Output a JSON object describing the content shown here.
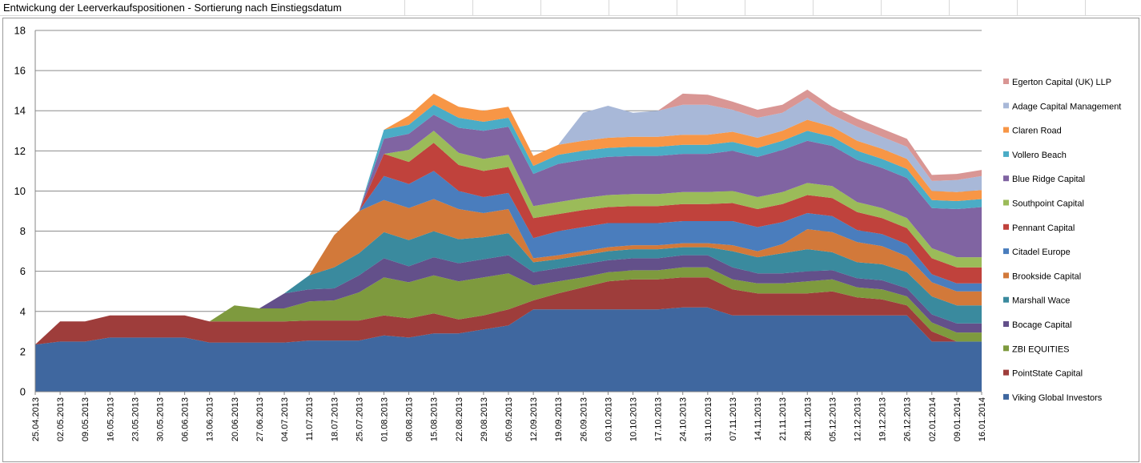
{
  "sheet": {
    "title": "Entwickung der Leerverkaufspositionen - Sortierung nach Einstiegsdatum"
  },
  "chart_data": {
    "type": "area",
    "stacked": true,
    "title": "Entwickung der Leerverkaufspositionen - Sortierung nach Einstiegsdatum",
    "xlabel": "",
    "ylabel": "",
    "ylim": [
      0,
      18
    ],
    "yticks": [
      0,
      2,
      4,
      6,
      8,
      10,
      12,
      14,
      16,
      18
    ],
    "grid": true,
    "legend_position": "right",
    "x_tick_labels": [
      "25.04.2013",
      "02.05.2013",
      "09.05.2013",
      "16.05.2013",
      "23.05.2013",
      "30.05.2013",
      "06.06.2013",
      "13.06.2013",
      "20.06.2013",
      "27.06.2013",
      "04.07.2013",
      "11.07.2013",
      "18.07.2013",
      "25.07.2013",
      "01.08.2013",
      "08.08.2013",
      "15.08.2013",
      "22.08.2013",
      "29.08.2013",
      "05.09.2013",
      "12.09.2013",
      "19.09.2013",
      "26.09.2013",
      "03.10.2013",
      "10.10.2013",
      "17.10.2013",
      "24.10.2013",
      "31.10.2013",
      "07.11.2013",
      "14.11.2013",
      "21.11.2013",
      "28.11.2013",
      "05.12.2013",
      "12.12.2013",
      "19.12.2013",
      "26.12.2013",
      "02.01.2014",
      "09.01.2014",
      "16.01.2014"
    ],
    "x": [
      "25.04.2013",
      "02.05.2013",
      "09.05.2013",
      "16.05.2013",
      "23.05.2013",
      "30.05.2013",
      "06.06.2013",
      "13.06.2013",
      "20.06.2013",
      "27.06.2013",
      "04.07.2013",
      "11.07.2013",
      "18.07.2013",
      "25.07.2013",
      "01.08.2013",
      "08.08.2013",
      "15.08.2013",
      "22.08.2013",
      "29.08.2013",
      "05.09.2013",
      "12.09.2013",
      "19.09.2013",
      "26.09.2013",
      "03.10.2013",
      "10.10.2013",
      "17.10.2013",
      "24.10.2013",
      "31.10.2013",
      "07.11.2013",
      "14.11.2013",
      "21.11.2013",
      "28.11.2013",
      "05.12.2013",
      "12.12.2013",
      "19.12.2013",
      "26.12.2013",
      "02.01.2014",
      "09.01.2014",
      "16.01.2014"
    ],
    "series": [
      {
        "name": "Viking Global Investors",
        "color": "#3f679f",
        "values": [
          2.35,
          2.5,
          2.5,
          2.7,
          2.7,
          2.7,
          2.7,
          2.45,
          2.45,
          2.45,
          2.45,
          2.55,
          2.55,
          2.55,
          2.8,
          2.7,
          2.9,
          2.9,
          3.1,
          3.3,
          4.1,
          4.1,
          4.1,
          4.1,
          4.1,
          4.1,
          4.2,
          4.2,
          3.8,
          3.8,
          3.8,
          3.8,
          3.8,
          3.8,
          3.8,
          3.8,
          2.5,
          2.5,
          2.5
        ]
      },
      {
        "name": "PointState  Capital",
        "color": "#9e3d3b",
        "values": [
          0,
          1.0,
          1.0,
          1.1,
          1.1,
          1.1,
          1.1,
          1.05,
          1.05,
          1.05,
          1.05,
          1.0,
          1.0,
          1.0,
          1.0,
          0.95,
          1.0,
          0.7,
          0.7,
          0.8,
          0.45,
          0.8,
          1.1,
          1.4,
          1.5,
          1.5,
          1.5,
          1.5,
          1.3,
          1.1,
          1.1,
          1.1,
          1.2,
          0.9,
          0.8,
          0.5,
          0.5,
          0,
          0
        ]
      },
      {
        "name": "ZBI EQUITIES",
        "color": "#7e9a3e",
        "values": [
          0,
          0,
          0,
          0,
          0,
          0,
          0,
          0,
          0.8,
          0.65,
          0.65,
          0.95,
          1.0,
          1.4,
          1.9,
          1.8,
          1.9,
          1.9,
          1.9,
          1.8,
          0.75,
          0.6,
          0.5,
          0.45,
          0.45,
          0.45,
          0.5,
          0.5,
          0.5,
          0.5,
          0.5,
          0.6,
          0.6,
          0.5,
          0.5,
          0.45,
          0.45,
          0.45,
          0.45
        ]
      },
      {
        "name": "Bocage Capital",
        "color": "#63508a",
        "values": [
          0,
          0,
          0,
          0,
          0,
          0,
          0,
          0,
          0,
          0,
          0.75,
          0.6,
          0.6,
          0.85,
          0.95,
          0.8,
          0.9,
          0.9,
          0.9,
          0.9,
          0.65,
          0.65,
          0.65,
          0.6,
          0.6,
          0.6,
          0.6,
          0.6,
          0.6,
          0.5,
          0.5,
          0.5,
          0.45,
          0.45,
          0.45,
          0.4,
          0.4,
          0.45,
          0.45
        ]
      },
      {
        "name": "Marshall Wace",
        "color": "#3a8a9e",
        "values": [
          0,
          0,
          0,
          0,
          0,
          0,
          0,
          0,
          0,
          0,
          0,
          0.7,
          1.05,
          1.1,
          1.3,
          1.3,
          1.3,
          1.2,
          1.1,
          1.1,
          0.5,
          0.45,
          0.45,
          0.45,
          0.45,
          0.45,
          0.4,
          0.4,
          0.8,
          0.8,
          1.0,
          1.1,
          0.9,
          0.8,
          0.8,
          0.8,
          0.9,
          0.9,
          0.9
        ]
      },
      {
        "name": "Brookside Capital",
        "color": "#d2793a",
        "values": [
          0,
          0,
          0,
          0,
          0,
          0,
          0,
          0,
          0,
          0,
          0,
          0,
          1.6,
          2.1,
          1.6,
          1.6,
          1.6,
          1.5,
          1.2,
          1.2,
          0.2,
          0.2,
          0.2,
          0.2,
          0.2,
          0.2,
          0.2,
          0.2,
          0.3,
          0.3,
          0.45,
          1.0,
          1.0,
          1.0,
          0.9,
          0.8,
          0.7,
          0.7,
          0.7
        ]
      },
      {
        "name": "Citadel Europe",
        "color": "#4a7dbd",
        "values": [
          0,
          0,
          0,
          0,
          0,
          0,
          0,
          0,
          0,
          0,
          0,
          0,
          0,
          0,
          1.2,
          1.2,
          1.4,
          0.9,
          0.8,
          0.8,
          1.0,
          1.2,
          1.2,
          1.2,
          1.1,
          1.1,
          1.1,
          1.1,
          1.2,
          1.2,
          1.1,
          0.8,
          0.8,
          0.6,
          0.6,
          0.6,
          0.4,
          0.4,
          0.4
        ]
      },
      {
        "name": "Pennant Capital",
        "color": "#c0423c",
        "values": [
          0,
          0,
          0,
          0,
          0,
          0,
          0,
          0,
          0,
          0,
          0,
          0,
          0,
          0,
          1.1,
          1.1,
          1.4,
          1.3,
          1.3,
          1.3,
          1.0,
          0.85,
          0.85,
          0.8,
          0.85,
          0.85,
          0.85,
          0.85,
          0.9,
          0.9,
          0.9,
          0.9,
          0.9,
          0.9,
          0.8,
          0.8,
          0.8,
          0.8,
          0.8
        ]
      },
      {
        "name": "Southpoint Capital",
        "color": "#9bbb59",
        "values": [
          0,
          0,
          0,
          0,
          0,
          0,
          0,
          0,
          0,
          0,
          0,
          0,
          0,
          0,
          0,
          0.6,
          0.6,
          0.6,
          0.6,
          0.6,
          0.6,
          0.6,
          0.6,
          0.6,
          0.6,
          0.6,
          0.6,
          0.6,
          0.6,
          0.6,
          0.6,
          0.6,
          0.6,
          0.5,
          0.5,
          0.5,
          0.5,
          0.5,
          0.5
        ]
      },
      {
        "name": "Blue Ridge Capital",
        "color": "#8064a2",
        "values": [
          0,
          0,
          0,
          0,
          0,
          0,
          0,
          0,
          0,
          0,
          0,
          0,
          0,
          0,
          0.75,
          0.8,
          0.8,
          1.25,
          1.4,
          1.4,
          1.6,
          1.9,
          1.9,
          1.9,
          1.9,
          1.9,
          1.9,
          1.9,
          2.0,
          2.0,
          2.1,
          2.1,
          2.0,
          2.1,
          2.0,
          2.0,
          2.0,
          2.4,
          2.5
        ]
      },
      {
        "name": "Vollero Beach",
        "color": "#4bacc6",
        "values": [
          0,
          0,
          0,
          0,
          0,
          0,
          0,
          0,
          0,
          0,
          0,
          0,
          0,
          0,
          0.45,
          0.45,
          0.5,
          0.5,
          0.45,
          0.45,
          0.4,
          0.45,
          0.45,
          0.45,
          0.45,
          0.45,
          0.45,
          0.45,
          0.45,
          0.45,
          0.45,
          0.5,
          0.45,
          0.45,
          0.45,
          0.45,
          0.4,
          0.4,
          0.4
        ]
      },
      {
        "name": "Claren Road",
        "color": "#f79646",
        "values": [
          0,
          0,
          0,
          0,
          0,
          0,
          0,
          0,
          0,
          0,
          0,
          0,
          0,
          0,
          0,
          0.45,
          0.55,
          0.55,
          0.55,
          0.55,
          0.5,
          0.5,
          0.5,
          0.5,
          0.5,
          0.5,
          0.5,
          0.5,
          0.5,
          0.5,
          0.5,
          0.55,
          0.5,
          0.5,
          0.5,
          0.5,
          0.45,
          0.45,
          0.45
        ]
      },
      {
        "name": "Adage Capital  Management",
        "color": "#a8b8d8",
        "values": [
          0,
          0,
          0,
          0,
          0,
          0,
          0,
          0,
          0,
          0,
          0,
          0,
          0,
          0,
          0,
          0,
          0,
          0,
          0,
          0,
          0,
          0,
          1.4,
          1.6,
          1.2,
          1.3,
          1.5,
          1.5,
          1.1,
          1.0,
          0.9,
          1.1,
          0.6,
          0.7,
          0.6,
          0.6,
          0.5,
          0.6,
          0.7
        ]
      },
      {
        "name": "Egerton Capital (UK) LLP",
        "color": "#d99694",
        "values": [
          0,
          0,
          0,
          0,
          0,
          0,
          0,
          0,
          0,
          0,
          0,
          0,
          0,
          0,
          0,
          0,
          0,
          0,
          0,
          0,
          0,
          0,
          0,
          0,
          0,
          0,
          0.55,
          0.5,
          0.4,
          0.4,
          0.4,
          0.4,
          0.4,
          0.4,
          0.4,
          0.4,
          0.3,
          0.3,
          0.3
        ]
      }
    ]
  }
}
